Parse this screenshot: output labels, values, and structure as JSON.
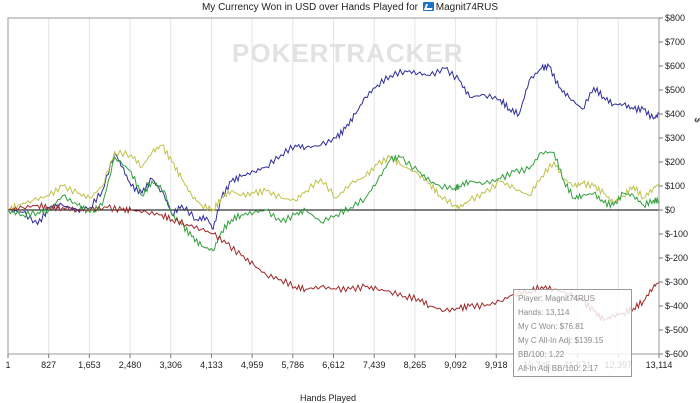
{
  "title": {
    "prefix": "My Currency Won in USD over Hands Played for",
    "player": "Magnit74RUS",
    "player_icon": "player-icon"
  },
  "watermark": "POKERTRACKER",
  "chart_data": {
    "type": "line",
    "title": "My Currency Won in USD over Hands Played for Magnit74RUS",
    "xlabel": "Hands Played",
    "ylabel": "$",
    "xlim": [
      1,
      13114
    ],
    "ylim": [
      -600,
      800
    ],
    "x_ticks": [
      "1",
      "827",
      "1,653",
      "2,480",
      "3,306",
      "4,133",
      "4,959",
      "5,786",
      "6,612",
      "7,439",
      "8,265",
      "9,092",
      "9,918",
      "10,745",
      "11,571",
      "12,397",
      "13,114"
    ],
    "y_ticks": [
      "$800",
      "$700",
      "$600",
      "$500",
      "$400",
      "$300",
      "$200",
      "$100",
      "$0",
      "$-100",
      "$-200",
      "$-300",
      "$-400",
      "$-500",
      "$-600"
    ],
    "grid": "vertical",
    "series": [
      {
        "color": "#2e2e9e",
        "x": [
          1,
          300,
          600,
          827,
          1100,
          1400,
          1653,
          1900,
          2150,
          2300,
          2480,
          2700,
          2900,
          3150,
          3306,
          3500,
          3800,
          4000,
          4133,
          4300,
          4500,
          4700,
          4959,
          5200,
          5500,
          5786,
          6000,
          6300,
          6612,
          6800,
          7000,
          7200,
          7439,
          7700,
          8000,
          8265,
          8500,
          8800,
          9092,
          9300,
          9600,
          9918,
          10100,
          10300,
          10500,
          10745,
          10900,
          11100,
          11300,
          11571,
          11800,
          12000,
          12200,
          12397,
          12600,
          12800,
          13000,
          13114
        ],
        "y": [
          0,
          -10,
          -60,
          10,
          20,
          0,
          10,
          80,
          240,
          180,
          100,
          70,
          130,
          60,
          -20,
          20,
          -40,
          -30,
          -80,
          50,
          120,
          140,
          160,
          180,
          230,
          270,
          260,
          270,
          300,
          340,
          400,
          470,
          520,
          560,
          580,
          570,
          560,
          590,
          540,
          470,
          480,
          460,
          420,
          400,
          540,
          590,
          600,
          510,
          470,
          420,
          510,
          470,
          440,
          440,
          420,
          420,
          380,
          400
        ]
      },
      {
        "color": "#c0c24a",
        "x": [
          1,
          200,
          500,
          827,
          1100,
          1400,
          1653,
          1900,
          2150,
          2480,
          2700,
          2900,
          3100,
          3306,
          3500,
          3700,
          3900,
          4133,
          4300,
          4500,
          4700,
          4959,
          5200,
          5500,
          5786,
          6000,
          6300,
          6612,
          6900,
          7200,
          7439,
          7700,
          7900,
          8265,
          8500,
          8700,
          9000,
          9092,
          9300,
          9600,
          9918,
          10200,
          10500,
          10745,
          11000,
          11200,
          11400,
          11571,
          11800,
          12000,
          12200,
          12397,
          12600,
          12800,
          13000,
          13114
        ],
        "y": [
          0,
          20,
          40,
          60,
          100,
          70,
          50,
          100,
          240,
          230,
          180,
          240,
          270,
          200,
          130,
          60,
          20,
          0,
          50,
          80,
          60,
          70,
          80,
          50,
          40,
          80,
          130,
          50,
          110,
          140,
          190,
          220,
          190,
          150,
          110,
          60,
          20,
          10,
          40,
          70,
          120,
          90,
          60,
          140,
          200,
          130,
          100,
          110,
          100,
          70,
          30,
          60,
          100,
          50,
          90,
          110
        ]
      },
      {
        "color": "#33a13e",
        "x": [
          1,
          300,
          600,
          827,
          1100,
          1400,
          1653,
          1900,
          2150,
          2480,
          2700,
          2900,
          3150,
          3306,
          3500,
          3700,
          3900,
          4133,
          4300,
          4500,
          4700,
          4959,
          5200,
          5500,
          5786,
          6000,
          6300,
          6612,
          6900,
          7200,
          7439,
          7700,
          7900,
          8265,
          8500,
          8700,
          9000,
          9092,
          9300,
          9600,
          9918,
          10200,
          10500,
          10745,
          11000,
          11200,
          11400,
          11571,
          11800,
          12000,
          12200,
          12397,
          12600,
          12800,
          13000,
          13114
        ],
        "y": [
          0,
          -20,
          -10,
          0,
          60,
          20,
          -10,
          20,
          220,
          160,
          60,
          120,
          80,
          -20,
          -60,
          -110,
          -150,
          -170,
          -90,
          -40,
          -20,
          -10,
          0,
          -50,
          -20,
          0,
          -50,
          -20,
          10,
          50,
          120,
          210,
          220,
          160,
          120,
          100,
          90,
          100,
          120,
          110,
          130,
          160,
          170,
          240,
          240,
          120,
          50,
          60,
          70,
          30,
          20,
          70,
          60,
          20,
          40,
          40
        ]
      },
      {
        "color": "#a02828",
        "x": [
          1,
          300,
          600,
          827,
          1100,
          1400,
          1653,
          2000,
          2300,
          2480,
          2800,
          3100,
          3306,
          3600,
          3900,
          4133,
          4400,
          4700,
          4959,
          5200,
          5500,
          5786,
          6000,
          6300,
          6612,
          6900,
          7200,
          7439,
          7700,
          8000,
          8265,
          8500,
          8800,
          9092,
          9300,
          9600,
          9918,
          10200,
          10500,
          10745,
          11000,
          11300,
          11571,
          11800,
          12000,
          12200,
          12397,
          12600,
          12800,
          13000,
          13114
        ],
        "y": [
          0,
          10,
          20,
          10,
          10,
          0,
          0,
          10,
          0,
          0,
          -10,
          -20,
          -40,
          -60,
          -80,
          -100,
          -140,
          -190,
          -230,
          -270,
          -290,
          -320,
          -330,
          -320,
          -330,
          -330,
          -320,
          -330,
          -340,
          -360,
          -370,
          -400,
          -420,
          -410,
          -400,
          -400,
          -380,
          -350,
          -340,
          -320,
          -330,
          -350,
          -380,
          -420,
          -460,
          -440,
          -430,
          -410,
          -380,
          -320,
          -300
        ]
      }
    ]
  },
  "stats": {
    "player": "Player: Magnit74RUS",
    "hands": "Hands: 13,114",
    "won": "My C Won: $76.81",
    "allin": "My C All-In Adj: $139.15",
    "bb100": "BB/100: 1.22",
    "allin_bb100": "All-In Adj BB/100: 2.17"
  }
}
